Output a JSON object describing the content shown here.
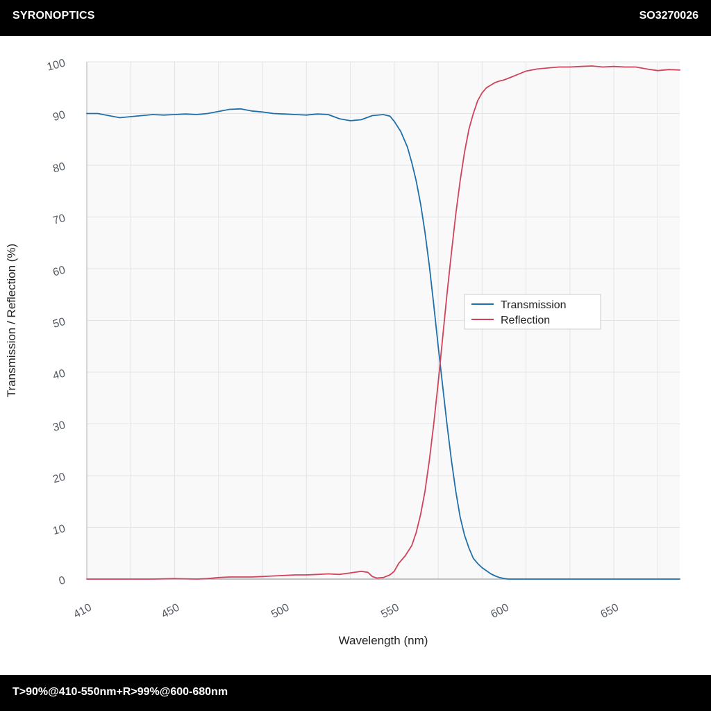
{
  "header": {
    "brand": "SYRONOPTICS",
    "part_number": "SO3270026"
  },
  "footer": {
    "spec": "T>90%@410-550nm+R>99%@600-680nm"
  },
  "colors": {
    "transmission": "#1f6fa8",
    "reflection": "#d0435a",
    "plot_bg": "#f9f9fa",
    "grid": "#e3e4e7"
  },
  "chart_data": {
    "type": "line",
    "title": "",
    "xlabel": "Wavelength (nm)",
    "ylabel": "Transmission / Reflection (%)",
    "xlim": [
      410,
      680
    ],
    "ylim": [
      0,
      100
    ],
    "x_ticks": [
      410,
      450,
      500,
      550,
      600,
      650
    ],
    "y_ticks": [
      0,
      10,
      20,
      30,
      40,
      50,
      60,
      70,
      80,
      90,
      100
    ],
    "grid": true,
    "legend_position": "center-right",
    "series": [
      {
        "name": "Transmission",
        "color": "#1f6fa8",
        "x": [
          410,
          415,
          420,
          425,
          430,
          435,
          440,
          445,
          450,
          455,
          460,
          465,
          470,
          475,
          480,
          485,
          490,
          495,
          500,
          505,
          510,
          515,
          520,
          525,
          530,
          535,
          540,
          545,
          548,
          550,
          553,
          556,
          558,
          560,
          562,
          564,
          566,
          568,
          570,
          572,
          574,
          576,
          578,
          580,
          582,
          584,
          586,
          588,
          590,
          592,
          594,
          596,
          598,
          600,
          602,
          604,
          606,
          610,
          620,
          640,
          660,
          680
        ],
        "values": [
          90.0,
          90.0,
          89.6,
          89.2,
          89.4,
          89.6,
          89.8,
          89.7,
          89.8,
          89.9,
          89.8,
          90.0,
          90.4,
          90.8,
          90.9,
          90.5,
          90.3,
          90.0,
          89.9,
          89.8,
          89.7,
          89.9,
          89.8,
          89.0,
          88.6,
          88.8,
          89.6,
          89.8,
          89.5,
          88.5,
          86.5,
          83.5,
          80.5,
          77.0,
          72.5,
          67.0,
          60.5,
          53.0,
          45.0,
          37.5,
          30.0,
          23.0,
          17.0,
          12.0,
          8.5,
          6.0,
          4.0,
          3.0,
          2.2,
          1.6,
          1.0,
          0.6,
          0.3,
          0.1,
          0.0,
          0.0,
          0.0,
          0.0,
          0.0,
          0.0,
          0.0,
          0.0
        ]
      },
      {
        "name": "Reflection",
        "color": "#d0435a",
        "x": [
          410,
          420,
          430,
          440,
          450,
          460,
          465,
          470,
          475,
          480,
          485,
          490,
          495,
          500,
          505,
          510,
          515,
          520,
          525,
          530,
          535,
          538,
          540,
          542,
          545,
          548,
          550,
          552,
          555,
          558,
          560,
          562,
          564,
          566,
          568,
          570,
          572,
          574,
          576,
          578,
          580,
          582,
          584,
          586,
          588,
          590,
          592,
          594,
          596,
          598,
          600,
          603,
          606,
          610,
          615,
          620,
          625,
          630,
          635,
          640,
          645,
          650,
          655,
          660,
          665,
          670,
          675,
          680
        ],
        "values": [
          0.0,
          0.0,
          0.0,
          0.0,
          0.1,
          0.0,
          0.1,
          0.3,
          0.4,
          0.4,
          0.4,
          0.5,
          0.6,
          0.7,
          0.8,
          0.8,
          0.9,
          1.0,
          0.9,
          1.2,
          1.5,
          1.3,
          0.5,
          0.2,
          0.3,
          0.8,
          1.5,
          3.0,
          4.5,
          6.5,
          9.0,
          12.5,
          17.0,
          23.0,
          30.0,
          38.0,
          46.5,
          55.0,
          63.0,
          70.5,
          77.0,
          82.5,
          87.0,
          90.0,
          92.5,
          94.0,
          95.0,
          95.5,
          96.0,
          96.3,
          96.5,
          97.0,
          97.5,
          98.2,
          98.6,
          98.8,
          99.0,
          99.0,
          99.1,
          99.2,
          99.0,
          99.1,
          99.0,
          99.0,
          98.6,
          98.3,
          98.5,
          98.4
        ]
      }
    ]
  }
}
